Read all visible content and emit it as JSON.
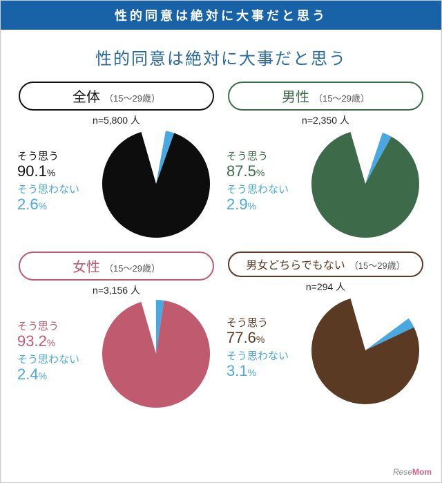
{
  "header": {
    "text": "性的同意は絶対に大事だと思う",
    "bg": "#1862a8",
    "fg": "#ffffff"
  },
  "title": {
    "text": "性的同意は絶対に大事だと思う",
    "color": "#2a6aa2"
  },
  "labels": {
    "agree": "そう思う",
    "disagree": "そう思わない",
    "n_prefix": "n=",
    "n_suffix": " 人",
    "pct": "%"
  },
  "colors": {
    "disagree_slice": "#4aa8e0",
    "disagree_text": "#4aa8e0",
    "remainder_slice": "#ffffff",
    "pill_sub_text": "#555555"
  },
  "pie": {
    "radius": 78,
    "start_angle_deg": -16
  },
  "panels": [
    {
      "key": "all",
      "pill_main": "全体",
      "pill_sub": "（15～29歳）",
      "pill_border": "#111111",
      "pill_main_color": "#111111",
      "n": "5,800",
      "agree_pct": 90.1,
      "disagree_pct": 2.6,
      "slice_color": "#0d0d0d",
      "agree_text_color": "#111111"
    },
    {
      "key": "male",
      "pill_main": "男性",
      "pill_sub": "（15～29歳）",
      "pill_border": "#3d6b4a",
      "pill_main_color": "#3d6b4a",
      "n": "2,350",
      "agree_pct": 87.5,
      "disagree_pct": 2.9,
      "slice_color": "#3d6b4a",
      "agree_text_color": "#3d6b4a"
    },
    {
      "key": "female",
      "pill_main": "女性",
      "pill_sub": "（15～29歳）",
      "pill_border": "#c05a6e",
      "pill_main_color": "#c05a6e",
      "n": "3,156",
      "agree_pct": 93.2,
      "disagree_pct": 2.4,
      "slice_color": "#c05a6e",
      "agree_text_color": "#c05a6e"
    },
    {
      "key": "other",
      "pill_main": "男女どちらでもない",
      "pill_sub": "（15～29歳）",
      "pill_border": "#5a3a22",
      "pill_main_color": "#5a3a22",
      "n": "294",
      "agree_pct": 77.6,
      "disagree_pct": 3.1,
      "slice_color": "#5a3a22",
      "agree_text_color": "#5a3a22",
      "pill_main_fontsize": 16
    }
  ],
  "footer": {
    "brand1": "Rese",
    "brand2": "Mom"
  }
}
